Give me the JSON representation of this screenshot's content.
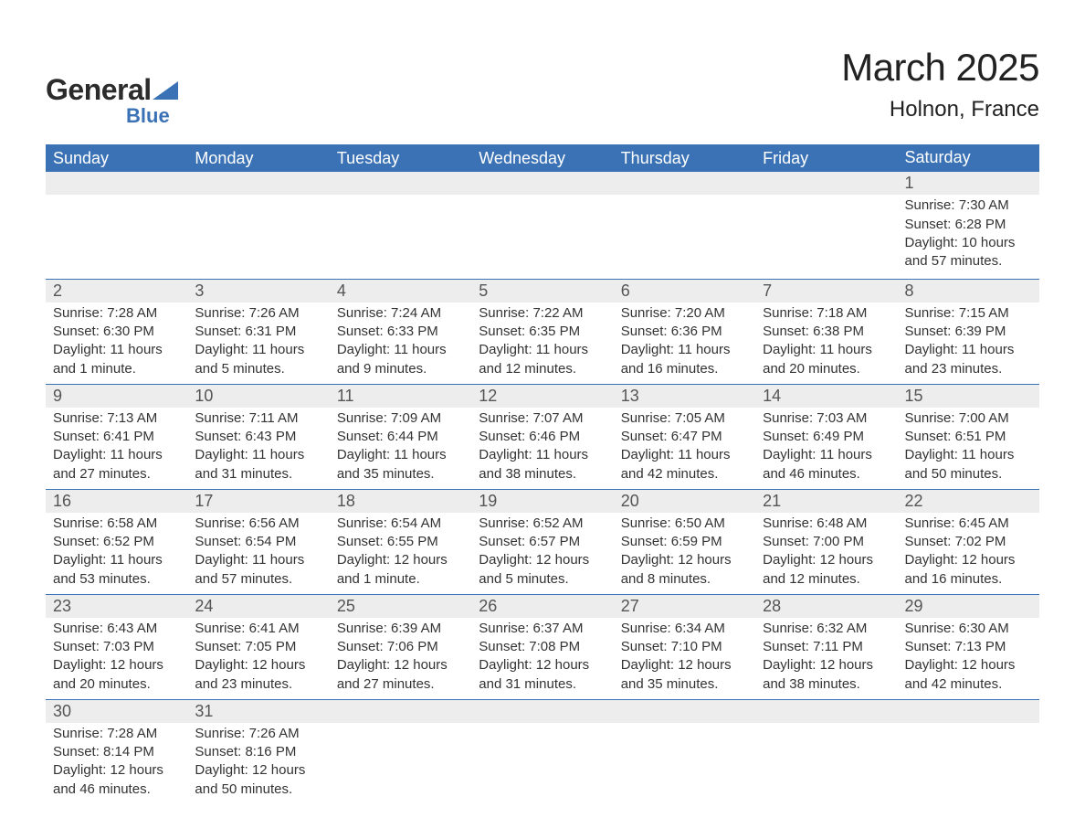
{
  "brand": {
    "part1": "General",
    "part2": "Blue"
  },
  "title": "March 2025",
  "location": "Holnon, France",
  "colors": {
    "header_bg": "#3a72b5",
    "header_text": "#ffffff",
    "daynum_bg": "#ededed",
    "border_top": "#3a72b5",
    "body_text": "#333333",
    "logo_blue": "#3a72b5"
  },
  "weekdays": [
    "Sunday",
    "Monday",
    "Tuesday",
    "Wednesday",
    "Thursday",
    "Friday",
    "Saturday"
  ],
  "weeks": [
    [
      null,
      null,
      null,
      null,
      null,
      null,
      {
        "n": "1",
        "sr": "Sunrise: 7:30 AM",
        "ss": "Sunset: 6:28 PM",
        "d1": "Daylight: 10 hours",
        "d2": "and 57 minutes."
      }
    ],
    [
      {
        "n": "2",
        "sr": "Sunrise: 7:28 AM",
        "ss": "Sunset: 6:30 PM",
        "d1": "Daylight: 11 hours",
        "d2": "and 1 minute."
      },
      {
        "n": "3",
        "sr": "Sunrise: 7:26 AM",
        "ss": "Sunset: 6:31 PM",
        "d1": "Daylight: 11 hours",
        "d2": "and 5 minutes."
      },
      {
        "n": "4",
        "sr": "Sunrise: 7:24 AM",
        "ss": "Sunset: 6:33 PM",
        "d1": "Daylight: 11 hours",
        "d2": "and 9 minutes."
      },
      {
        "n": "5",
        "sr": "Sunrise: 7:22 AM",
        "ss": "Sunset: 6:35 PM",
        "d1": "Daylight: 11 hours",
        "d2": "and 12 minutes."
      },
      {
        "n": "6",
        "sr": "Sunrise: 7:20 AM",
        "ss": "Sunset: 6:36 PM",
        "d1": "Daylight: 11 hours",
        "d2": "and 16 minutes."
      },
      {
        "n": "7",
        "sr": "Sunrise: 7:18 AM",
        "ss": "Sunset: 6:38 PM",
        "d1": "Daylight: 11 hours",
        "d2": "and 20 minutes."
      },
      {
        "n": "8",
        "sr": "Sunrise: 7:15 AM",
        "ss": "Sunset: 6:39 PM",
        "d1": "Daylight: 11 hours",
        "d2": "and 23 minutes."
      }
    ],
    [
      {
        "n": "9",
        "sr": "Sunrise: 7:13 AM",
        "ss": "Sunset: 6:41 PM",
        "d1": "Daylight: 11 hours",
        "d2": "and 27 minutes."
      },
      {
        "n": "10",
        "sr": "Sunrise: 7:11 AM",
        "ss": "Sunset: 6:43 PM",
        "d1": "Daylight: 11 hours",
        "d2": "and 31 minutes."
      },
      {
        "n": "11",
        "sr": "Sunrise: 7:09 AM",
        "ss": "Sunset: 6:44 PM",
        "d1": "Daylight: 11 hours",
        "d2": "and 35 minutes."
      },
      {
        "n": "12",
        "sr": "Sunrise: 7:07 AM",
        "ss": "Sunset: 6:46 PM",
        "d1": "Daylight: 11 hours",
        "d2": "and 38 minutes."
      },
      {
        "n": "13",
        "sr": "Sunrise: 7:05 AM",
        "ss": "Sunset: 6:47 PM",
        "d1": "Daylight: 11 hours",
        "d2": "and 42 minutes."
      },
      {
        "n": "14",
        "sr": "Sunrise: 7:03 AM",
        "ss": "Sunset: 6:49 PM",
        "d1": "Daylight: 11 hours",
        "d2": "and 46 minutes."
      },
      {
        "n": "15",
        "sr": "Sunrise: 7:00 AM",
        "ss": "Sunset: 6:51 PM",
        "d1": "Daylight: 11 hours",
        "d2": "and 50 minutes."
      }
    ],
    [
      {
        "n": "16",
        "sr": "Sunrise: 6:58 AM",
        "ss": "Sunset: 6:52 PM",
        "d1": "Daylight: 11 hours",
        "d2": "and 53 minutes."
      },
      {
        "n": "17",
        "sr": "Sunrise: 6:56 AM",
        "ss": "Sunset: 6:54 PM",
        "d1": "Daylight: 11 hours",
        "d2": "and 57 minutes."
      },
      {
        "n": "18",
        "sr": "Sunrise: 6:54 AM",
        "ss": "Sunset: 6:55 PM",
        "d1": "Daylight: 12 hours",
        "d2": "and 1 minute."
      },
      {
        "n": "19",
        "sr": "Sunrise: 6:52 AM",
        "ss": "Sunset: 6:57 PM",
        "d1": "Daylight: 12 hours",
        "d2": "and 5 minutes."
      },
      {
        "n": "20",
        "sr": "Sunrise: 6:50 AM",
        "ss": "Sunset: 6:59 PM",
        "d1": "Daylight: 12 hours",
        "d2": "and 8 minutes."
      },
      {
        "n": "21",
        "sr": "Sunrise: 6:48 AM",
        "ss": "Sunset: 7:00 PM",
        "d1": "Daylight: 12 hours",
        "d2": "and 12 minutes."
      },
      {
        "n": "22",
        "sr": "Sunrise: 6:45 AM",
        "ss": "Sunset: 7:02 PM",
        "d1": "Daylight: 12 hours",
        "d2": "and 16 minutes."
      }
    ],
    [
      {
        "n": "23",
        "sr": "Sunrise: 6:43 AM",
        "ss": "Sunset: 7:03 PM",
        "d1": "Daylight: 12 hours",
        "d2": "and 20 minutes."
      },
      {
        "n": "24",
        "sr": "Sunrise: 6:41 AM",
        "ss": "Sunset: 7:05 PM",
        "d1": "Daylight: 12 hours",
        "d2": "and 23 minutes."
      },
      {
        "n": "25",
        "sr": "Sunrise: 6:39 AM",
        "ss": "Sunset: 7:06 PM",
        "d1": "Daylight: 12 hours",
        "d2": "and 27 minutes."
      },
      {
        "n": "26",
        "sr": "Sunrise: 6:37 AM",
        "ss": "Sunset: 7:08 PM",
        "d1": "Daylight: 12 hours",
        "d2": "and 31 minutes."
      },
      {
        "n": "27",
        "sr": "Sunrise: 6:34 AM",
        "ss": "Sunset: 7:10 PM",
        "d1": "Daylight: 12 hours",
        "d2": "and 35 minutes."
      },
      {
        "n": "28",
        "sr": "Sunrise: 6:32 AM",
        "ss": "Sunset: 7:11 PM",
        "d1": "Daylight: 12 hours",
        "d2": "and 38 minutes."
      },
      {
        "n": "29",
        "sr": "Sunrise: 6:30 AM",
        "ss": "Sunset: 7:13 PM",
        "d1": "Daylight: 12 hours",
        "d2": "and 42 minutes."
      }
    ],
    [
      {
        "n": "30",
        "sr": "Sunrise: 7:28 AM",
        "ss": "Sunset: 8:14 PM",
        "d1": "Daylight: 12 hours",
        "d2": "and 46 minutes."
      },
      {
        "n": "31",
        "sr": "Sunrise: 7:26 AM",
        "ss": "Sunset: 8:16 PM",
        "d1": "Daylight: 12 hours",
        "d2": "and 50 minutes."
      },
      null,
      null,
      null,
      null,
      null
    ]
  ]
}
